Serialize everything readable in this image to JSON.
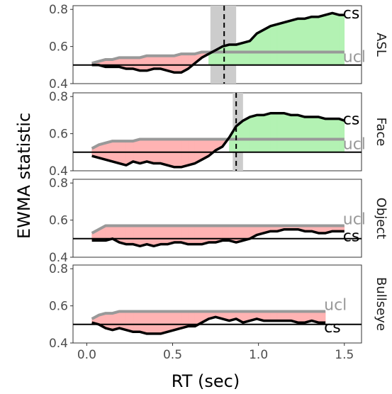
{
  "chart_data": {
    "type": "line",
    "xlabel": "RT (sec)",
    "ylabel": "EWMA statistic",
    "xlim": [
      -0.08,
      1.6
    ],
    "ylim": [
      0.4,
      0.82
    ],
    "xticks": [
      "0.0",
      "0.5",
      "1.0",
      "1.5"
    ],
    "yticks": [
      "0.4",
      "0.6",
      "0.8"
    ],
    "grid": false,
    "colors": {
      "cs": "#000000",
      "ucl": "#999999",
      "below": "#ffb3b3",
      "above": "#b3f2b3",
      "band": "#cccccc"
    },
    "series_labels": {
      "cs": "cs",
      "ucl": "ucl"
    },
    "panels": [
      {
        "label": "ASL",
        "baseline": 0.5,
        "x": [
          0.03,
          0.07,
          0.11,
          0.15,
          0.19,
          0.23,
          0.27,
          0.31,
          0.35,
          0.39,
          0.43,
          0.47,
          0.51,
          0.55,
          0.59,
          0.63,
          0.67,
          0.71,
          0.75,
          0.79,
          0.83,
          0.87,
          0.91,
          0.95,
          0.99,
          1.03,
          1.07,
          1.11,
          1.15,
          1.19,
          1.23,
          1.27,
          1.31,
          1.35,
          1.39,
          1.43,
          1.47,
          1.5
        ],
        "cs": [
          0.5,
          0.5,
          0.49,
          0.49,
          0.49,
          0.48,
          0.48,
          0.47,
          0.47,
          0.48,
          0.48,
          0.47,
          0.46,
          0.46,
          0.48,
          0.51,
          0.54,
          0.56,
          0.58,
          0.6,
          0.61,
          0.61,
          0.62,
          0.63,
          0.67,
          0.69,
          0.71,
          0.72,
          0.73,
          0.74,
          0.75,
          0.75,
          0.76,
          0.76,
          0.77,
          0.78,
          0.77,
          0.77
        ],
        "ucl": [
          0.51,
          0.52,
          0.53,
          0.53,
          0.54,
          0.54,
          0.54,
          0.54,
          0.55,
          0.55,
          0.55,
          0.55,
          0.55,
          0.56,
          0.56,
          0.56,
          0.57,
          0.57,
          0.57,
          0.57,
          0.57,
          0.57,
          0.57,
          0.57,
          0.57,
          0.57,
          0.57,
          0.57,
          0.57,
          0.57,
          0.57,
          0.57,
          0.57,
          0.57,
          0.57,
          0.57,
          0.57,
          0.57
        ],
        "divergence": 0.8,
        "ci": [
          0.72,
          0.87
        ],
        "label_order": [
          "cs",
          "ucl"
        ]
      },
      {
        "label": "Face",
        "baseline": 0.5,
        "x": [
          0.03,
          0.07,
          0.11,
          0.15,
          0.19,
          0.23,
          0.27,
          0.31,
          0.35,
          0.39,
          0.43,
          0.47,
          0.51,
          0.55,
          0.59,
          0.63,
          0.67,
          0.71,
          0.75,
          0.79,
          0.83,
          0.87,
          0.91,
          0.95,
          0.99,
          1.03,
          1.07,
          1.11,
          1.15,
          1.19,
          1.23,
          1.27,
          1.31,
          1.35,
          1.39,
          1.43,
          1.47,
          1.5
        ],
        "cs": [
          0.48,
          0.47,
          0.46,
          0.45,
          0.44,
          0.43,
          0.45,
          0.44,
          0.45,
          0.44,
          0.44,
          0.43,
          0.42,
          0.42,
          0.43,
          0.44,
          0.46,
          0.48,
          0.51,
          0.53,
          0.58,
          0.64,
          0.67,
          0.69,
          0.7,
          0.7,
          0.71,
          0.71,
          0.71,
          0.7,
          0.7,
          0.69,
          0.69,
          0.69,
          0.68,
          0.68,
          0.68,
          0.67
        ],
        "ucl": [
          0.52,
          0.54,
          0.55,
          0.56,
          0.56,
          0.56,
          0.56,
          0.57,
          0.57,
          0.57,
          0.57,
          0.57,
          0.57,
          0.57,
          0.57,
          0.57,
          0.57,
          0.57,
          0.57,
          0.57,
          0.57,
          0.57,
          0.57,
          0.57,
          0.57,
          0.57,
          0.57,
          0.57,
          0.57,
          0.57,
          0.57,
          0.57,
          0.57,
          0.57,
          0.57,
          0.57,
          0.57,
          0.57
        ],
        "divergence": 0.87,
        "ci": [
          0.85,
          0.91
        ],
        "label_order": [
          "cs",
          "ucl"
        ]
      },
      {
        "label": "Object",
        "baseline": 0.5,
        "x": [
          0.03,
          0.07,
          0.11,
          0.15,
          0.19,
          0.23,
          0.27,
          0.31,
          0.35,
          0.39,
          0.43,
          0.47,
          0.51,
          0.55,
          0.59,
          0.63,
          0.67,
          0.71,
          0.75,
          0.79,
          0.83,
          0.87,
          0.91,
          0.95,
          0.99,
          1.03,
          1.07,
          1.11,
          1.15,
          1.19,
          1.23,
          1.27,
          1.31,
          1.35,
          1.39,
          1.43,
          1.47,
          1.5
        ],
        "cs": [
          0.49,
          0.49,
          0.49,
          0.5,
          0.48,
          0.47,
          0.47,
          0.46,
          0.47,
          0.46,
          0.47,
          0.47,
          0.48,
          0.48,
          0.47,
          0.47,
          0.47,
          0.48,
          0.48,
          0.49,
          0.49,
          0.48,
          0.49,
          0.5,
          0.52,
          0.53,
          0.54,
          0.54,
          0.55,
          0.55,
          0.55,
          0.54,
          0.54,
          0.53,
          0.53,
          0.54,
          0.54,
          0.54
        ],
        "ucl": [
          0.53,
          0.55,
          0.57,
          0.57,
          0.57,
          0.57,
          0.57,
          0.57,
          0.57,
          0.57,
          0.57,
          0.57,
          0.57,
          0.57,
          0.57,
          0.57,
          0.57,
          0.57,
          0.57,
          0.57,
          0.57,
          0.57,
          0.57,
          0.57,
          0.57,
          0.57,
          0.57,
          0.57,
          0.57,
          0.57,
          0.57,
          0.57,
          0.57,
          0.57,
          0.57,
          0.57,
          0.57,
          0.57
        ],
        "divergence": null,
        "ci": null,
        "label_order": [
          "ucl",
          "cs"
        ]
      },
      {
        "label": "Bullseye",
        "baseline": 0.5,
        "x": [
          0.03,
          0.07,
          0.11,
          0.15,
          0.19,
          0.23,
          0.27,
          0.31,
          0.35,
          0.39,
          0.43,
          0.47,
          0.51,
          0.55,
          0.59,
          0.63,
          0.67,
          0.71,
          0.75,
          0.79,
          0.83,
          0.87,
          0.91,
          0.95,
          0.99,
          1.03,
          1.07,
          1.11,
          1.15,
          1.19,
          1.23,
          1.27,
          1.31,
          1.35,
          1.39
        ],
        "cs": [
          0.51,
          0.5,
          0.48,
          0.47,
          0.48,
          0.47,
          0.46,
          0.46,
          0.45,
          0.45,
          0.45,
          0.46,
          0.47,
          0.48,
          0.49,
          0.49,
          0.51,
          0.53,
          0.54,
          0.53,
          0.52,
          0.53,
          0.51,
          0.52,
          0.53,
          0.52,
          0.52,
          0.52,
          0.52,
          0.52,
          0.51,
          0.51,
          0.52,
          0.51,
          0.51
        ],
        "ucl": [
          0.53,
          0.55,
          0.56,
          0.56,
          0.57,
          0.57,
          0.57,
          0.57,
          0.57,
          0.57,
          0.57,
          0.57,
          0.57,
          0.57,
          0.57,
          0.57,
          0.57,
          0.57,
          0.57,
          0.57,
          0.57,
          0.57,
          0.57,
          0.57,
          0.57,
          0.57,
          0.57,
          0.57,
          0.57,
          0.57,
          0.57,
          0.57,
          0.57,
          0.57,
          0.57
        ],
        "divergence": null,
        "ci": null,
        "label_order": [
          "ucl",
          "cs"
        ]
      }
    ]
  }
}
